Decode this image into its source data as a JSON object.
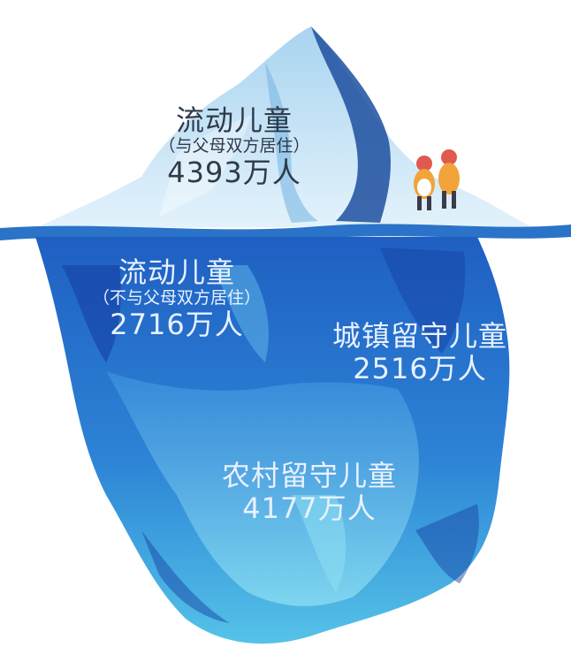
{
  "diagram": {
    "type": "iceberg",
    "above_water": {
      "title": "流动儿童",
      "subtitle": "（与父母双方居住）",
      "value": "4393万人"
    },
    "below_left": {
      "title": "流动儿童",
      "subtitle": "（不与父母双方居住）",
      "value": "2716万人"
    },
    "below_right": {
      "title": "城镇留守儿童",
      "value": "2516万人"
    },
    "below_bottom": {
      "title": "农村留守儿童",
      "value": "4177万人"
    }
  },
  "colors": {
    "sky_ice": "#cfe6f5",
    "water_line": "#2a73c8",
    "deep_blue": "#1746a8",
    "mid_blue": "#2f82d8",
    "light_blue": "#5fb4e8",
    "aqua": "#7fd3ee"
  }
}
